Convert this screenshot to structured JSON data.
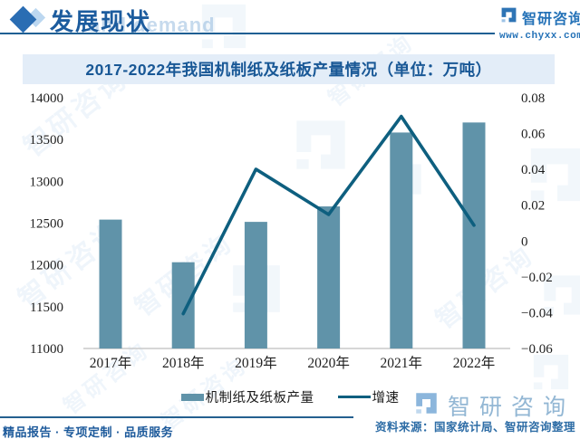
{
  "header": {
    "title": "发展现状",
    "watermark_text": "and demand",
    "brand": {
      "name": "智研咨询",
      "url": "www.chyxx.com"
    }
  },
  "chart": {
    "title": "2017-2022年我国机制纸及纸板产量情况（单位：万吨）"
  },
  "chart_data": {
    "type": "bar+line",
    "categories": [
      "2017年",
      "2018年",
      "2019年",
      "2020年",
      "2021年",
      "2022年"
    ],
    "series": [
      {
        "name": "机制纸及纸板产量",
        "type": "bar",
        "axis": "left",
        "color": "#6093a9",
        "values": [
          12542,
          12032,
          12515,
          12700,
          13584,
          13704
        ]
      },
      {
        "name": "增速",
        "type": "line",
        "axis": "right",
        "color": "#0e5f7f",
        "values": [
          null,
          -0.0406,
          0.0401,
          0.0148,
          0.0696,
          0.0088
        ]
      }
    ],
    "left_axis": {
      "min": 11000,
      "max": 14000,
      "step": 500,
      "ticks": [
        "14000",
        "13500",
        "13000",
        "12500",
        "12000",
        "11500",
        "11000"
      ]
    },
    "right_axis": {
      "min": -0.06,
      "max": 0.08,
      "step": 0.02,
      "ticks": [
        "0.08",
        "0.06",
        "0.04",
        "0.02",
        "0",
        "−0.02",
        "−0.04",
        "−0.06"
      ]
    },
    "grid": false,
    "legend_position": "bottom",
    "title": "2017-2022年我国机制纸及纸板产量情况（单位：万吨）",
    "xlabel": "",
    "ylabel": ""
  },
  "footer": {
    "services": "精品报告 · 专项定制 · 品质服务",
    "source": "资料来源：国家统计局、智研咨询整理",
    "brand_name": "智研咨询"
  },
  "watermark": {
    "brand_text": "智研咨询"
  }
}
